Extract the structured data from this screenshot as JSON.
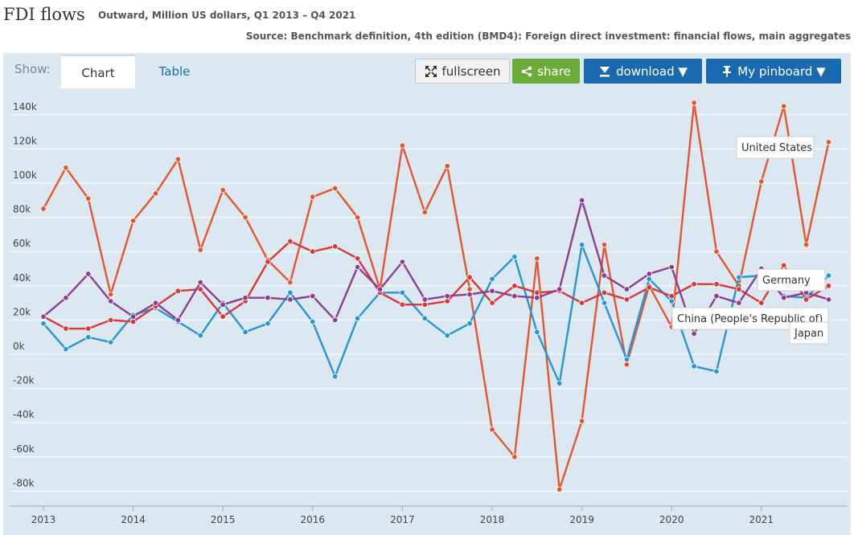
{
  "header": {
    "title": "FDI flows",
    "subtitle": "Outward, Million US dollars, Q1 2013 – Q4 2021",
    "source": "Source: Benchmark definition, 4th edition (BMD4): Foreign direct investment: financial flows, main aggregates"
  },
  "toolbar": {
    "show_label": "Show:",
    "tabs": [
      {
        "label": "Chart",
        "active": true
      },
      {
        "label": "Table",
        "active": false
      }
    ],
    "fullscreen_label": "fullscreen",
    "share_label": "share",
    "download_label": "download ▼",
    "pinboard_label": "My pinboard ▼"
  },
  "icons": {
    "fullscreen": "expand-arrows-icon",
    "share": "share-icon",
    "download": "download-arrow-icon",
    "pinboard": "pin-icon"
  },
  "colors": {
    "chart_background": "#dbe8f1",
    "share_button": "#6bab3a",
    "primary_button": "#1a68b0"
  },
  "chart_data": {
    "type": "line",
    "title": "",
    "xlabel": "",
    "ylabel": "",
    "ylim": [
      -85000,
      150000
    ],
    "yticks": [
      -80000,
      -60000,
      -40000,
      -20000,
      0,
      20000,
      40000,
      60000,
      80000,
      100000,
      120000,
      140000
    ],
    "ytick_labels": [
      "-80k",
      "-60k",
      "-40k",
      "-20k",
      "0k",
      "20k",
      "40k",
      "60k",
      "80k",
      "100k",
      "120k",
      "140k"
    ],
    "x": [
      "Q1 2013",
      "Q2 2013",
      "Q3 2013",
      "Q4 2013",
      "Q1 2014",
      "Q2 2014",
      "Q3 2014",
      "Q4 2014",
      "Q1 2015",
      "Q2 2015",
      "Q3 2015",
      "Q4 2015",
      "Q1 2016",
      "Q2 2016",
      "Q3 2016",
      "Q4 2016",
      "Q1 2017",
      "Q2 2017",
      "Q3 2017",
      "Q4 2017",
      "Q1 2018",
      "Q2 2018",
      "Q3 2018",
      "Q4 2018",
      "Q1 2019",
      "Q2 2019",
      "Q3 2019",
      "Q4 2019",
      "Q1 2020",
      "Q2 2020",
      "Q3 2020",
      "Q4 2020",
      "Q1 2021",
      "Q2 2021",
      "Q3 2021",
      "Q4 2021"
    ],
    "xtick_labels": [
      "2013",
      "2014",
      "2015",
      "2016",
      "2017",
      "2018",
      "2019",
      "2020",
      "2021"
    ],
    "grid": true,
    "legend": "end-of-line labels",
    "series": [
      {
        "name": "United States",
        "color": "#e4572e",
        "values": [
          85000,
          109000,
          91000,
          35000,
          78000,
          94000,
          114000,
          61000,
          96000,
          80000,
          55000,
          42000,
          92000,
          97000,
          80000,
          38000,
          122000,
          83000,
          110000,
          38000,
          -44000,
          -60000,
          56000,
          -79000,
          -39000,
          64000,
          -6000,
          40000,
          16000,
          147000,
          60000,
          40000,
          101000,
          145000,
          64000,
          124000
        ]
      },
      {
        "name": "Germany",
        "color": "#2596d6",
        "values": [
          18000,
          3000,
          10000,
          7000,
          23000,
          27000,
          19000,
          11000,
          30000,
          13000,
          18000,
          36000,
          19000,
          -13000,
          21000,
          36000,
          36000,
          21000,
          11000,
          18000,
          44000,
          57000,
          13000,
          -17000,
          64000,
          30000,
          -3000,
          44000,
          31000,
          -7000,
          -10000,
          45000,
          46000,
          34000,
          33000,
          46000
        ]
      },
      {
        "name": "China (People's Republic of)",
        "color": "#d93838",
        "values": [
          22000,
          15000,
          15000,
          20000,
          19000,
          28000,
          37000,
          38000,
          22000,
          31000,
          54000,
          66000,
          60000,
          63000,
          56000,
          36000,
          29000,
          29000,
          31000,
          45000,
          30000,
          40000,
          36000,
          37000,
          30000,
          36000,
          32000,
          39000,
          34000,
          41000,
          41000,
          38000,
          30000,
          52000,
          32000,
          40000
        ]
      },
      {
        "name": "Japan",
        "color": "#8e3e8e",
        "values": [
          22000,
          33000,
          47000,
          31000,
          22000,
          30000,
          20000,
          42000,
          29000,
          33000,
          33000,
          32000,
          34000,
          20000,
          51000,
          38000,
          54000,
          32000,
          34000,
          35000,
          37000,
          34000,
          33000,
          38000,
          90000,
          46000,
          38000,
          47000,
          51000,
          12000,
          34000,
          30000,
          50000,
          33000,
          36000,
          32000
        ]
      }
    ]
  }
}
